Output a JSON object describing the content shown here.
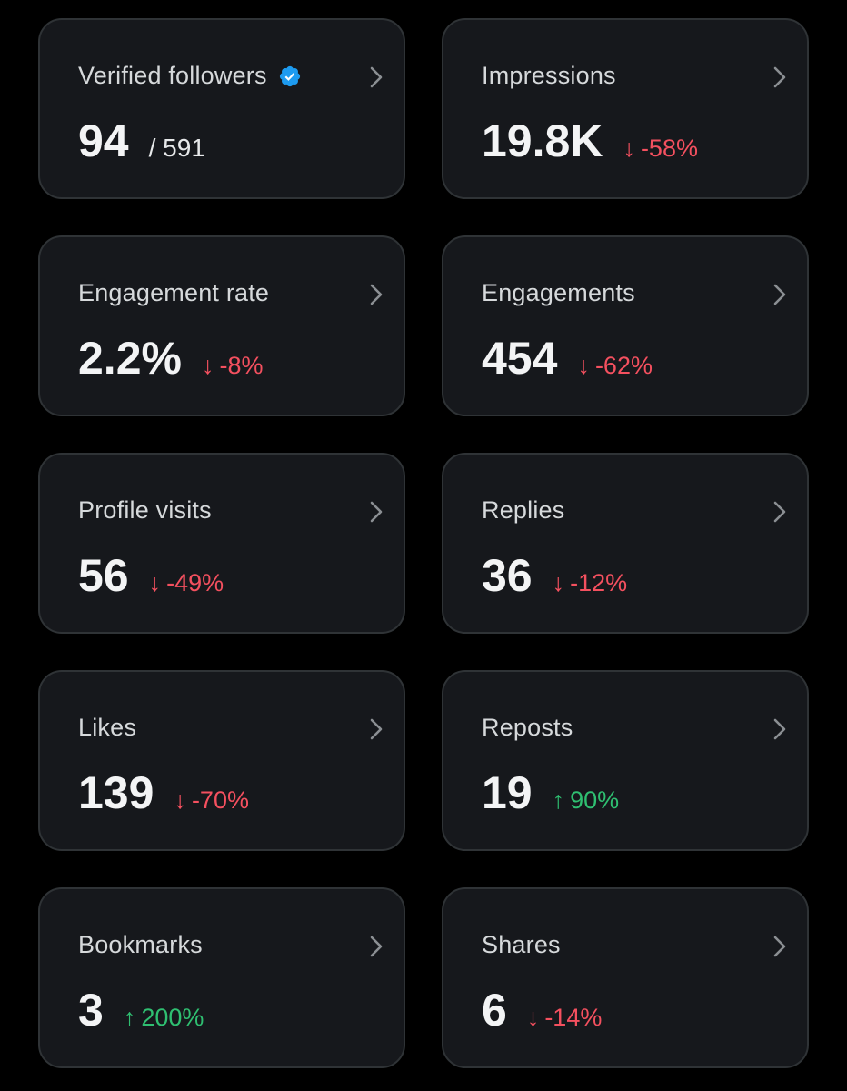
{
  "colors": {
    "background": "#000000",
    "card_background": "#16181c",
    "card_border": "#2f3336",
    "negative": "#f4505f",
    "positive": "#2fbf71",
    "verified_badge": "#1d9bf0"
  },
  "metrics": {
    "verified_followers": {
      "title": "Verified followers",
      "value": "94",
      "total": "/ 591",
      "icon": "verified-badge-icon"
    },
    "impressions": {
      "title": "Impressions",
      "value": "19.8K",
      "change": "-58%",
      "direction": "down"
    },
    "engagement_rate": {
      "title": "Engagement rate",
      "value": "2.2%",
      "change": "-8%",
      "direction": "down"
    },
    "engagements": {
      "title": "Engagements",
      "value": "454",
      "change": "-62%",
      "direction": "down"
    },
    "profile_visits": {
      "title": "Profile visits",
      "value": "56",
      "change": "-49%",
      "direction": "down"
    },
    "replies": {
      "title": "Replies",
      "value": "36",
      "change": "-12%",
      "direction": "down"
    },
    "likes": {
      "title": "Likes",
      "value": "139",
      "change": "-70%",
      "direction": "down"
    },
    "reposts": {
      "title": "Reposts",
      "value": "19",
      "change": "90%",
      "direction": "up"
    },
    "bookmarks": {
      "title": "Bookmarks",
      "value": "3",
      "change": "200%",
      "direction": "up"
    },
    "shares": {
      "title": "Shares",
      "value": "6",
      "change": "-14%",
      "direction": "down"
    }
  },
  "icons": {
    "down_arrow": "↓",
    "up_arrow": "↑",
    "chevron": "chevron-right-icon"
  }
}
